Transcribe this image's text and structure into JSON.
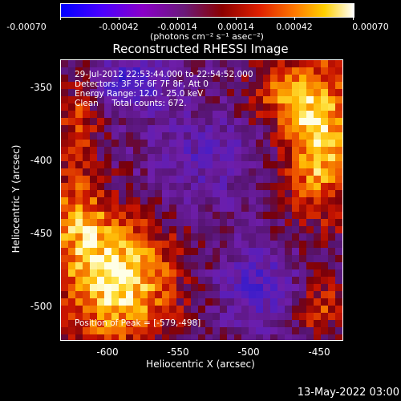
{
  "colorbar": {
    "tick_labels": [
      "-0.00070",
      "-0.00042",
      "-0.00014",
      "0.00014",
      "0.00042",
      "0.00070"
    ],
    "units": "(photons cm⁻² s⁻¹ asec⁻²)"
  },
  "title": "Reconstructed RHESSI Image",
  "info": {
    "time": "29-Jul-2012 22:53:44.000 to 22:54:52.000",
    "detectors": "Detectors: 3F 5F 6F 7F 8F, Att 0",
    "energy": "Energy Range: 12.0 - 25.0 keV",
    "clean": "Clean     Total counts: 672.",
    "peak": "Position of Peak = [-579,-498]"
  },
  "axes": {
    "xlabel": "Heliocentric X (arcsec)",
    "ylabel": "Heliocentric Y (arcsec)",
    "x_ticks": [
      "-600",
      "-550",
      "-500",
      "-450"
    ],
    "y_ticks": [
      "-350",
      "-400",
      "-450",
      "-500"
    ]
  },
  "footer_date": "13-May-2022 03:00"
}
